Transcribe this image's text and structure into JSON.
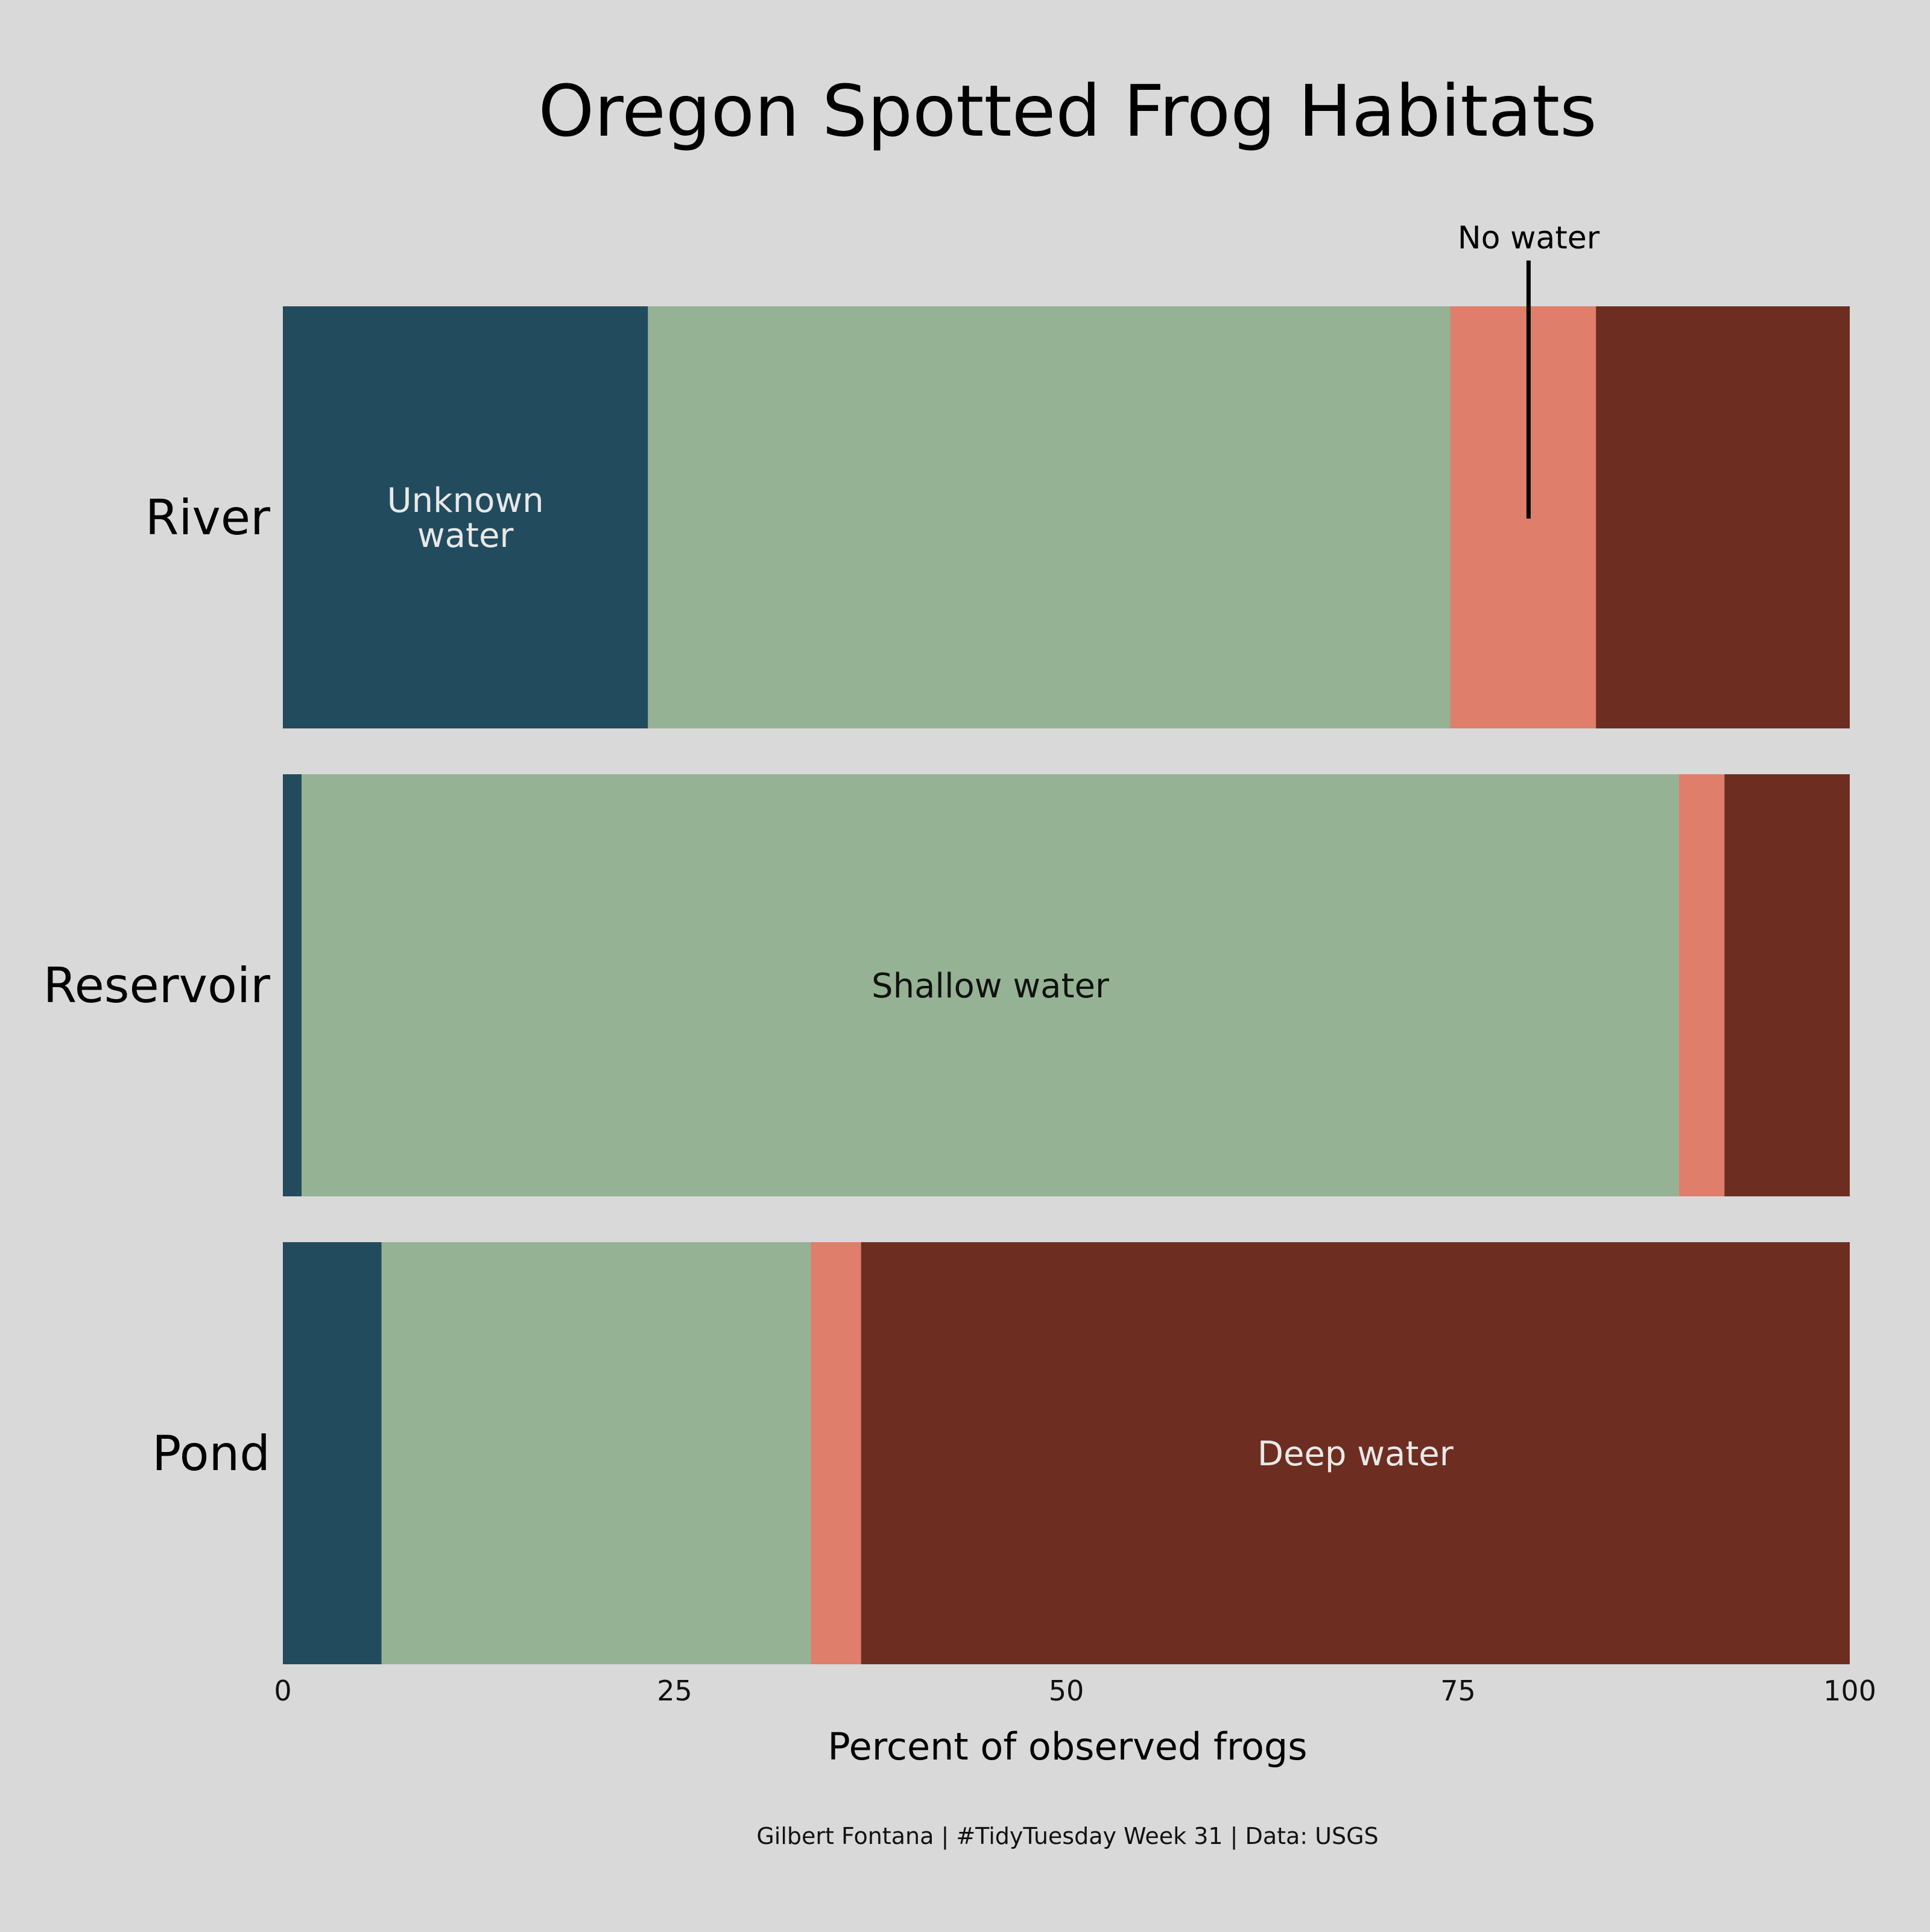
{
  "chart_data": {
    "type": "bar",
    "orientation": "horizontal",
    "stacked": true,
    "title": "Oregon Spotted Frog Habitats",
    "xlabel": "Percent of observed frogs",
    "ylabel": "",
    "xlim": [
      0,
      100
    ],
    "xticks": [
      0,
      25,
      50,
      75,
      100
    ],
    "xtick_labels": [
      "0",
      "25",
      "50",
      "75",
      "100"
    ],
    "grid": false,
    "legend": "none",
    "categories": [
      "River",
      "Reservoir",
      "Pond"
    ],
    "series": [
      {
        "name": "Unknown water",
        "color": "#224b5e",
        "values": [
          23.3,
          1.2,
          6.3
        ]
      },
      {
        "name": "Shallow water",
        "color": "#95b394",
        "values": [
          51.2,
          87.9,
          27.4
        ]
      },
      {
        "name": "No water",
        "color": "#df7e6a",
        "values": [
          9.3,
          2.9,
          3.2
        ]
      },
      {
        "name": "Deep water",
        "color": "#6d2e21",
        "values": [
          16.2,
          8.0,
          63.1
        ]
      }
    ],
    "annotations": [
      {
        "text_lines": [
          "Unknown",
          "water"
        ],
        "category": "River",
        "series": "Unknown water",
        "color": "#e8e8e8"
      },
      {
        "text_lines": [
          "Shallow water"
        ],
        "category": "Reservoir",
        "series": "Shallow water",
        "color": "#111111"
      },
      {
        "text_lines": [
          "Deep water"
        ],
        "category": "Pond",
        "series": "Deep water",
        "color": "#e8e8e8"
      },
      {
        "text_lines": [
          "No water"
        ],
        "category": "River",
        "series": "No water",
        "x": 79.5,
        "pointer": true,
        "color": "#000000"
      }
    ],
    "caption": "Gilbert Fontana | #TidyTuesday Week 31 | Data: USGS"
  },
  "colors": {
    "background": "#d9d9d9",
    "text": "#000000",
    "light_text": "#e8e8e8"
  }
}
